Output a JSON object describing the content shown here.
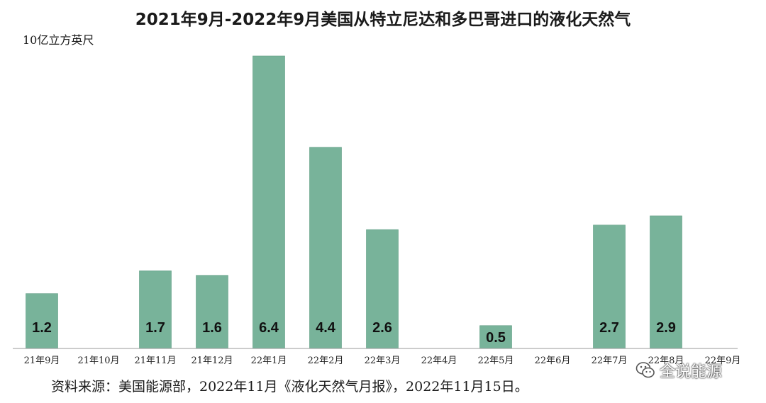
{
  "chart_data": {
    "type": "bar",
    "title": "2021年9月-2022年9月美国从特立尼达和多巴哥进口的液化天然气",
    "ylabel": "10亿立方英尺",
    "categories": [
      "21年9月",
      "21年10月",
      "21年11月",
      "21年12月",
      "22年1月",
      "22年2月",
      "22年3月",
      "22年4月",
      "22年5月",
      "22年6月",
      "22年7月",
      "22年8月",
      "22年9月"
    ],
    "values": [
      1.2,
      null,
      1.7,
      1.6,
      6.4,
      4.4,
      2.6,
      null,
      0.5,
      null,
      2.7,
      2.9,
      null
    ],
    "data_labels": [
      "1.2",
      "",
      "1.7",
      "1.6",
      "6.4",
      "4.4",
      "2.6",
      "",
      "0.5",
      "",
      "2.7",
      "2.9",
      ""
    ],
    "ylim": [
      0,
      6.4
    ],
    "grid": false,
    "legend": "none",
    "colors": {
      "bar": "#78b39a",
      "bar_edge": "#5e9c82",
      "axis": "#999999"
    }
  },
  "source": "资料来源：美国能源部，2022年11月《液化天然气月报》，2022年11月15日。",
  "watermark": {
    "text": "全说能源",
    "icon": "wechat-icon"
  }
}
